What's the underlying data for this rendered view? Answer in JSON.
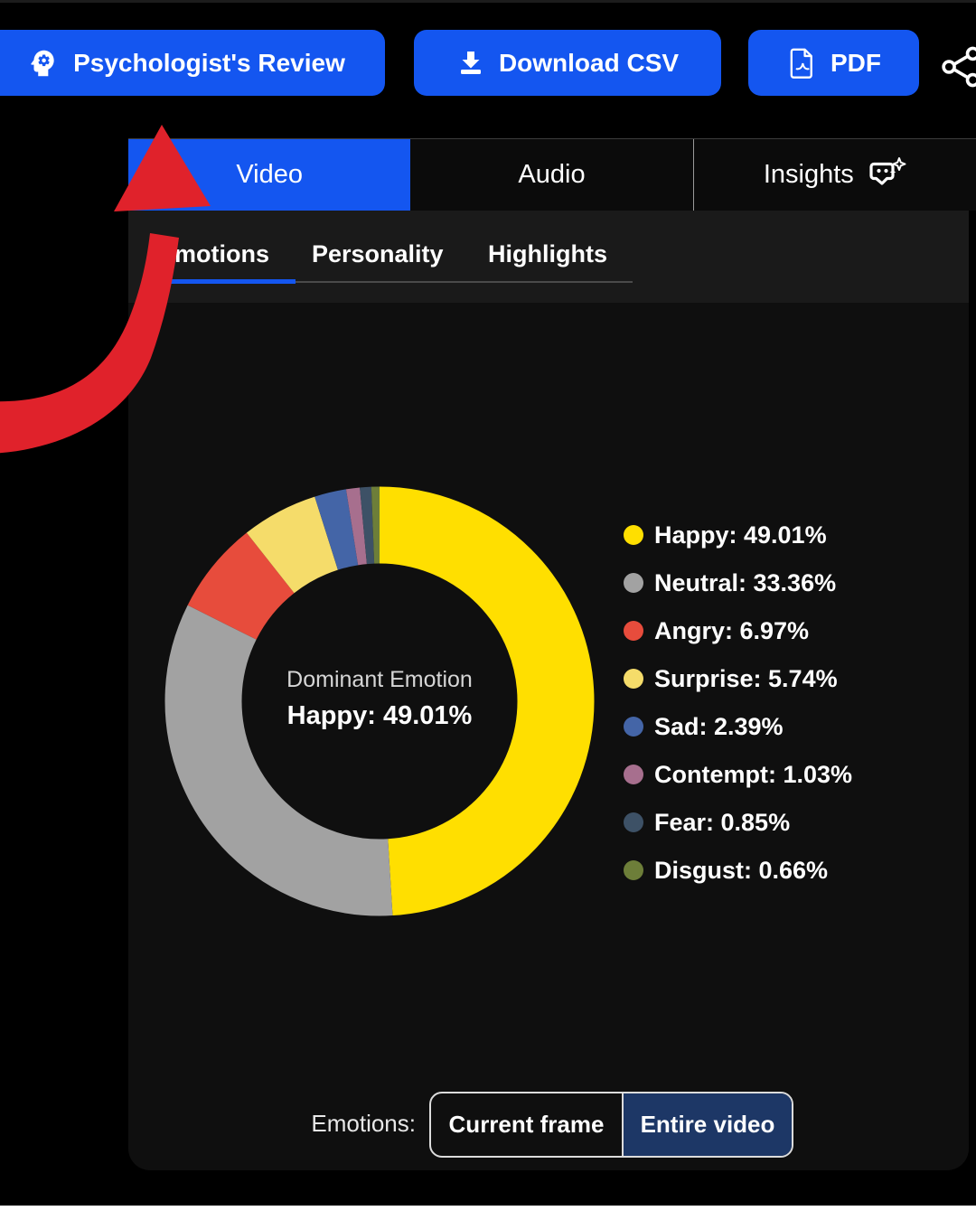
{
  "toolbar": {
    "psych_review_label": "Psychologist's Review",
    "download_csv_label": "Download CSV",
    "pdf_label": "PDF"
  },
  "tabs": {
    "video": "Video",
    "audio": "Audio",
    "insights": "Insights"
  },
  "subtabs": {
    "emotions": "Emotions",
    "personality": "Personality",
    "highlights": "Highlights"
  },
  "chart_data": {
    "type": "pie",
    "donut": true,
    "center_label": "Dominant Emotion",
    "center_value": "Happy: 49.01%",
    "categories": [
      "Happy",
      "Neutral",
      "Angry",
      "Surprise",
      "Sad",
      "Contempt",
      "Fear",
      "Disgust"
    ],
    "values": [
      49.01,
      33.36,
      6.97,
      5.74,
      2.39,
      1.03,
      0.85,
      0.66
    ],
    "colors": [
      "#ffdf00",
      "#a2a2a2",
      "#e74c3c",
      "#f5dc6a",
      "#4465a7",
      "#a76f8e",
      "#3d5166",
      "#6d7e39"
    ],
    "legend_labels": [
      "Happy: 49.01%",
      "Neutral: 33.36%",
      "Angry: 6.97%",
      "Surprise: 5.74%",
      "Sad: 2.39%",
      "Contempt: 1.03%",
      "Fear: 0.85%",
      "Disgust: 0.66%"
    ],
    "legend_position": "right",
    "start_angle_deg": 0,
    "direction": "clockwise"
  },
  "footer": {
    "group_label": "Emotions:",
    "options": [
      "Current frame",
      "Entire video"
    ],
    "selected": "Entire video"
  },
  "colors": {
    "accent_blue": "#1456f0",
    "selected_navy": "#1d3766",
    "arrow_red": "#e0222b",
    "panel_bg": "#0f0f0f",
    "subtab_bg": "#1a1a1a"
  }
}
